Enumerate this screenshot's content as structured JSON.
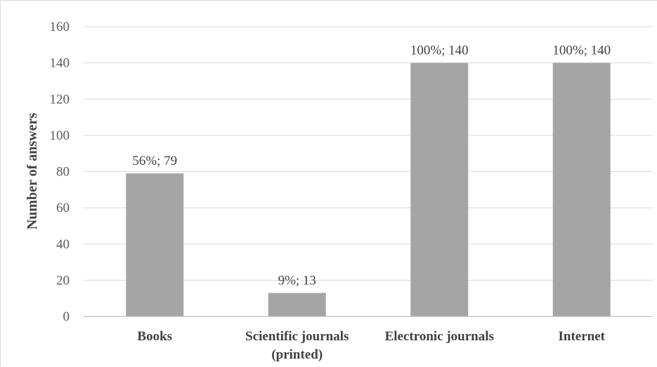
{
  "chart_data": {
    "type": "bar",
    "title": "",
    "xlabel": "",
    "ylabel": "Number of answers",
    "ylim": [
      0,
      160
    ],
    "yticks": [
      0,
      20,
      40,
      60,
      80,
      100,
      120,
      140,
      160
    ],
    "grid": true,
    "legend": "none",
    "categories": [
      [
        "Books"
      ],
      [
        "Scientific journals",
        "(printed)"
      ],
      [
        "Electronic journals"
      ],
      [
        "Internet"
      ]
    ],
    "values": [
      79,
      13,
      140,
      140
    ],
    "data_labels": [
      "56%; 79",
      "9%; 13",
      "100%; 140",
      "100%; 140"
    ],
    "colors": {
      "bar": "#a5a5a5",
      "grid": "#d9d9d9",
      "axis": "#bfbfbf"
    }
  }
}
